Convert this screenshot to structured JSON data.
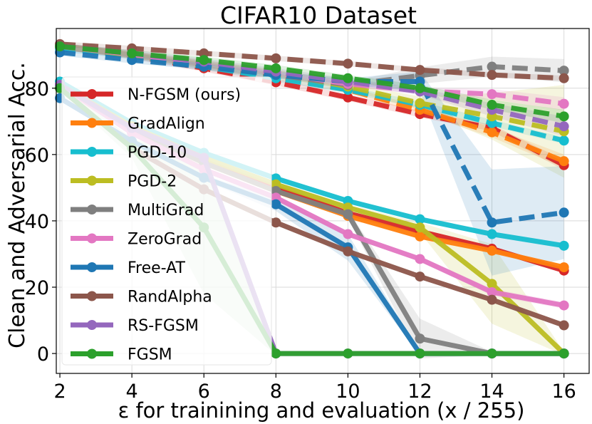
{
  "chart_data": {
    "type": "line",
    "title": "CIFAR10 Dataset",
    "xlabel": "ε for trainining and evaluation (x / 255)",
    "ylabel": "Clean and Adversarial Acc.",
    "x": [
      2,
      4,
      6,
      8,
      10,
      12,
      14,
      16
    ],
    "xlim": [
      1.9,
      16.7
    ],
    "ylim": [
      -6,
      98
    ],
    "xticks": [
      2,
      4,
      6,
      8,
      10,
      12,
      14,
      16
    ],
    "yticks": [
      0,
      20,
      40,
      60,
      80
    ],
    "grid": true,
    "legend_position": "center-left",
    "series": [
      {
        "name": "N-FGSM (ours)",
        "color": "#d62728",
        "clean": [
          92.6,
          89.8,
          86.0,
          81.8,
          77.2,
          72.2,
          68.0,
          56.8
        ],
        "robust": [
          81.0,
          68.0,
          58.0,
          50.0,
          42.3,
          36.8,
          31.6,
          25.0
        ],
        "clean_band": [
          1.0,
          1.0,
          1.0,
          1.0,
          1.0,
          1.0,
          1.0,
          1.5
        ],
        "robust_band": [
          0.8,
          0.8,
          0.8,
          0.8,
          0.8,
          0.8,
          0.8,
          0.8
        ]
      },
      {
        "name": "GradAlign",
        "color": "#ff7f0e",
        "clean": [
          92.6,
          90.0,
          86.8,
          83.5,
          79.5,
          73.5,
          66.7,
          58.0
        ],
        "robust": [
          81.0,
          67.5,
          57.5,
          49.0,
          41.5,
          35.3,
          31.0,
          26.0
        ],
        "clean_band": [
          1.0,
          1.0,
          1.0,
          1.0,
          1.0,
          1.0,
          1.5,
          2.0
        ],
        "robust_band": [
          0.8,
          0.8,
          0.8,
          0.8,
          0.8,
          0.8,
          0.8,
          0.8
        ]
      },
      {
        "name": "PGD-10",
        "color": "#17becf",
        "clean": [
          92.0,
          89.8,
          86.5,
          83.0,
          79.5,
          75.0,
          69.5,
          64.2
        ],
        "robust": [
          82.0,
          69.5,
          60.5,
          52.8,
          46.0,
          40.5,
          36.0,
          32.5
        ],
        "clean_band": [
          1.0,
          1.0,
          1.0,
          1.0,
          1.0,
          1.0,
          1.0,
          1.0
        ],
        "robust_band": [
          0.8,
          0.8,
          0.8,
          0.8,
          0.8,
          0.8,
          0.8,
          0.8
        ]
      },
      {
        "name": "PGD-2",
        "color": "#bcbd22",
        "clean": [
          92.6,
          90.0,
          87.5,
          84.5,
          80.5,
          75.5,
          71.5,
          67.0
        ],
        "robust": [
          81.0,
          68.5,
          59.0,
          51.0,
          44.0,
          38.0,
          21.0,
          0.0
        ],
        "clean_band": [
          1.0,
          1.0,
          1.0,
          1.0,
          1.0,
          2.0,
          7.0,
          14.0
        ],
        "robust_band": [
          0.8,
          0.8,
          0.8,
          0.8,
          1.0,
          1.5,
          12.0,
          0.5
        ]
      },
      {
        "name": "MultiGrad",
        "color": "#7f7f7f",
        "clean": [
          92.6,
          90.2,
          87.2,
          84.0,
          81.0,
          83.8,
          86.5,
          85.3
        ],
        "robust": [
          81.0,
          67.5,
          57.5,
          49.0,
          42.0,
          4.5,
          0.0,
          0.0
        ],
        "clean_band": [
          1.0,
          1.0,
          1.0,
          1.0,
          1.0,
          2.5,
          3.0,
          3.5
        ],
        "robust_band": [
          0.8,
          0.8,
          0.8,
          0.8,
          1.2,
          6.0,
          0.5,
          0.5
        ]
      },
      {
        "name": "ZeroGrad",
        "color": "#e377c2",
        "clean": [
          92.6,
          90.2,
          87.5,
          84.5,
          81.3,
          79.2,
          78.2,
          75.3
        ],
        "robust": [
          81.0,
          66.5,
          55.5,
          47.0,
          36.0,
          28.5,
          18.5,
          14.5
        ],
        "clean_band": [
          1.0,
          1.0,
          1.0,
          1.0,
          1.0,
          1.0,
          1.5,
          2.0
        ],
        "robust_band": [
          0.8,
          0.8,
          0.8,
          0.8,
          0.8,
          0.8,
          1.0,
          1.0
        ]
      },
      {
        "name": "Free-AT",
        "color": "#1f77b4",
        "clean": [
          90.8,
          88.5,
          86.5,
          84.0,
          82.0,
          82.0,
          39.5,
          42.5
        ],
        "robust": [
          77.0,
          64.0,
          53.0,
          45.0,
          32.0,
          0.0,
          0.0,
          0.0
        ],
        "clean_band": [
          1.0,
          1.0,
          1.0,
          1.0,
          1.0,
          3.0,
          16.0,
          14.0
        ],
        "robust_band": [
          0.8,
          0.8,
          0.8,
          2.0,
          4.0,
          0.5,
          0.5,
          0.5
        ]
      },
      {
        "name": "RandAlpha",
        "color": "#8c564b",
        "clean": [
          93.3,
          92.0,
          90.5,
          89.0,
          87.4,
          85.5,
          84.0,
          83.0
        ],
        "robust": [
          80.0,
          62.0,
          49.5,
          39.5,
          30.8,
          23.2,
          16.2,
          8.5
        ],
        "clean_band": [
          0.8,
          0.8,
          0.8,
          0.8,
          0.8,
          0.8,
          0.8,
          0.8
        ],
        "robust_band": [
          0.8,
          0.8,
          0.8,
          0.8,
          0.8,
          0.8,
          0.8,
          0.8
        ]
      },
      {
        "name": "RS-FGSM",
        "color": "#9467bd",
        "clean": [
          92.6,
          90.5,
          88.0,
          85.0,
          82.0,
          79.0,
          73.5,
          68.5
        ],
        "robust": [
          81.0,
          68.0,
          59.0,
          0.0,
          0.0,
          0.0,
          0.0,
          0.0
        ],
        "clean_band": [
          1.0,
          1.0,
          1.0,
          1.0,
          1.0,
          1.0,
          2.0,
          3.0
        ],
        "robust_band": [
          0.8,
          0.8,
          2.0,
          0.5,
          0.5,
          0.5,
          0.5,
          0.5
        ]
      },
      {
        "name": "FGSM",
        "color": "#2ca02c",
        "clean": [
          92.6,
          90.5,
          88.5,
          86.0,
          83.0,
          80.0,
          75.0,
          71.5
        ],
        "robust": [
          80.0,
          62.0,
          38.0,
          0.0,
          0.0,
          0.0,
          0.0,
          0.0
        ],
        "clean_band": [
          1.0,
          1.0,
          1.0,
          1.0,
          1.0,
          1.0,
          1.5,
          2.0
        ],
        "robust_band": [
          0.8,
          3.0,
          20.0,
          0.5,
          0.5,
          0.5,
          0.5,
          0.5
        ]
      }
    ]
  }
}
